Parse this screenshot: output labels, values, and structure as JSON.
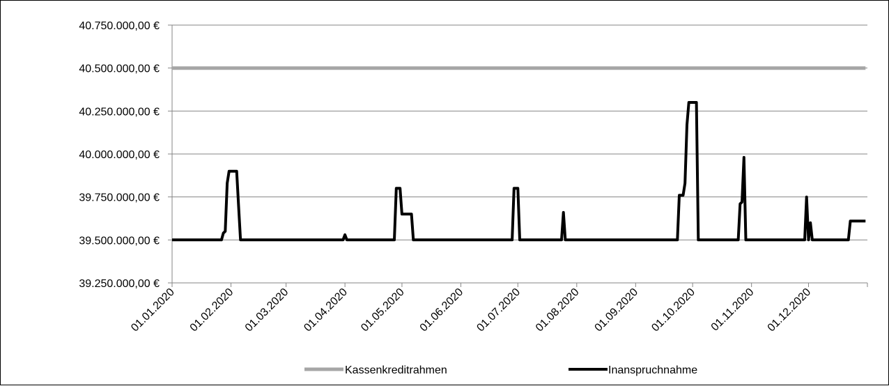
{
  "chart_data": {
    "type": "line",
    "title": "",
    "xlabel": "",
    "ylabel": "",
    "x_range": [
      "01.01.2020",
      "31.12.2020"
    ],
    "ylim": [
      39250000,
      40750000
    ],
    "y_ticks": [
      39250000,
      39500000,
      39750000,
      40000000,
      40250000,
      40500000,
      40750000
    ],
    "y_tick_labels": [
      "39.250.000,00 €",
      "39.500.000,00 €",
      "39.750.000,00 €",
      "40.000.000,00 €",
      "40.250.000,00 €",
      "40.500.000,00 €",
      "40.750.000,00 €"
    ],
    "x_ticks": [
      "01.01.2020",
      "01.02.2020",
      "01.03.2020",
      "01.04.2020",
      "01.05.2020",
      "01.06.2020",
      "01.07.2020",
      "01.08.2020",
      "01.09.2020",
      "01.10.2020",
      "01.11.2020",
      "01.12.2020"
    ],
    "grid": "horizontal",
    "legend_position": "bottom",
    "colors": {
      "Kassenkreditrahmen": "#a6a6a6",
      "Inanspruchnahme": "#000000"
    },
    "series": [
      {
        "name": "Kassenkreditrahmen",
        "points": [
          [
            "01.01.2020",
            40500000
          ],
          [
            "31.12.2020",
            40500000
          ]
        ]
      },
      {
        "name": "Inanspruchnahme",
        "points": [
          [
            "01.01.2020",
            39500000
          ],
          [
            "27.01.2020",
            39500000
          ],
          [
            "28.01.2020",
            39540000
          ],
          [
            "29.01.2020",
            39550000
          ],
          [
            "30.01.2020",
            39830000
          ],
          [
            "31.01.2020",
            39900000
          ],
          [
            "04.02.2020",
            39900000
          ],
          [
            "05.02.2020",
            39700000
          ],
          [
            "06.02.2020",
            39500000
          ],
          [
            "31.03.2020",
            39500000
          ],
          [
            "01.04.2020",
            39530000
          ],
          [
            "02.04.2020",
            39500000
          ],
          [
            "27.04.2020",
            39500000
          ],
          [
            "28.04.2020",
            39800000
          ],
          [
            "30.04.2020",
            39800000
          ],
          [
            "01.05.2020",
            39650000
          ],
          [
            "06.05.2020",
            39650000
          ],
          [
            "07.05.2020",
            39500000
          ],
          [
            "28.06.2020",
            39500000
          ],
          [
            "29.06.2020",
            39800000
          ],
          [
            "01.07.2020",
            39800000
          ],
          [
            "02.07.2020",
            39500000
          ],
          [
            "24.07.2020",
            39500000
          ],
          [
            "25.07.2020",
            39660000
          ],
          [
            "26.07.2020",
            39500000
          ],
          [
            "23.09.2020",
            39500000
          ],
          [
            "24.09.2020",
            39760000
          ],
          [
            "26.09.2020",
            39760000
          ],
          [
            "27.09.2020",
            39830000
          ],
          [
            "28.09.2020",
            40170000
          ],
          [
            "29.09.2020",
            40300000
          ],
          [
            "03.10.2020",
            40300000
          ],
          [
            "04.10.2020",
            39500000
          ],
          [
            "25.10.2020",
            39500000
          ],
          [
            "26.10.2020",
            39710000
          ],
          [
            "27.10.2020",
            39720000
          ],
          [
            "28.10.2020",
            39980000
          ],
          [
            "29.10.2020",
            39500000
          ],
          [
            "29.11.2020",
            39500000
          ],
          [
            "30.11.2020",
            39750000
          ],
          [
            "01.12.2020",
            39500000
          ],
          [
            "02.12.2020",
            39600000
          ],
          [
            "03.12.2020",
            39500000
          ],
          [
            "22.12.2020",
            39500000
          ],
          [
            "23.12.2020",
            39610000
          ],
          [
            "31.12.2020",
            39610000
          ]
        ]
      }
    ]
  }
}
